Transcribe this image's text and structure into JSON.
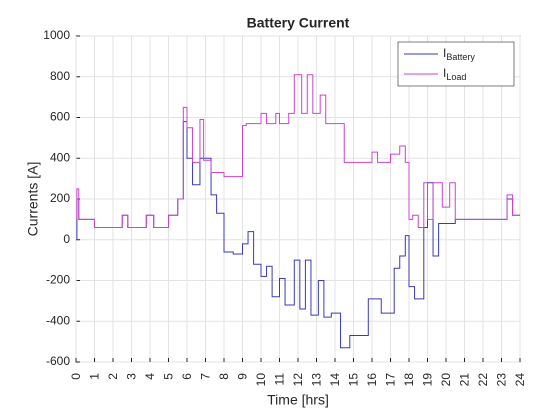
{
  "chart_data": {
    "type": "line",
    "step": true,
    "grid": true,
    "title": "Battery Current",
    "xlabel": "Time [hrs]",
    "ylabel": "Currents [A]",
    "legend": "upper right",
    "xlim": [
      0,
      24
    ],
    "xticks": [
      0,
      1,
      2,
      3,
      4,
      5,
      6,
      7,
      8,
      9,
      10,
      11,
      12,
      13,
      14,
      15,
      16,
      17,
      18,
      19,
      20,
      21,
      22,
      23,
      24
    ],
    "ylim": [
      -600,
      1000
    ],
    "yticks": [
      -600,
      -400,
      -200,
      0,
      200,
      400,
      600,
      800,
      1000
    ],
    "series": [
      {
        "name": "IBattery",
        "color": "#3a3ab8",
        "x": [
          0,
          0.05,
          0.15,
          1,
          2.5,
          2.8,
          3.8,
          4.2,
          5,
          5.5,
          5.8,
          6,
          6.3,
          6.7,
          7.3,
          7.6,
          8,
          8.5,
          9,
          9.3,
          9.6,
          10,
          10.3,
          10.6,
          11,
          11.3,
          11.8,
          12.1,
          12.4,
          12.7,
          13.1,
          13.4,
          13.8,
          14.3,
          14.8,
          15.8,
          16.5,
          17.2,
          17.5,
          17.8,
          18,
          18.3,
          18.8,
          19,
          19.3,
          19.6,
          20,
          20.5,
          22,
          23,
          23.3,
          23.6,
          24
        ],
        "values": [
          0,
          200,
          100,
          60,
          120,
          60,
          120,
          60,
          120,
          200,
          580,
          400,
          270,
          400,
          220,
          130,
          -60,
          -70,
          -20,
          40,
          -120,
          -180,
          -130,
          -280,
          -190,
          -320,
          -100,
          -340,
          -100,
          -370,
          -200,
          -380,
          -360,
          -530,
          -470,
          -290,
          -360,
          -140,
          -80,
          20,
          -230,
          -290,
          60,
          280,
          -80,
          80,
          80,
          100,
          100,
          100,
          200,
          120,
          120
        ]
      },
      {
        "name": "ILoad",
        "color": "#cc44cc",
        "x": [
          0,
          0.05,
          0.15,
          1,
          2.5,
          2.8,
          3.8,
          4.2,
          5,
          5.5,
          5.8,
          6,
          6.3,
          6.7,
          6.9,
          7.3,
          8,
          9,
          9.2,
          10,
          10.3,
          10.8,
          11,
          11.5,
          11.8,
          12.2,
          12.5,
          12.8,
          13.2,
          13.5,
          14.5,
          16,
          16.3,
          17,
          17.5,
          17.8,
          18,
          18.2,
          18.5,
          18.8,
          19,
          19.3,
          19.8,
          20.2,
          20.5,
          22,
          23,
          23.3,
          23.6,
          24
        ],
        "values": [
          100,
          250,
          100,
          60,
          120,
          60,
          120,
          60,
          120,
          200,
          650,
          550,
          380,
          590,
          390,
          330,
          310,
          560,
          570,
          620,
          570,
          620,
          570,
          620,
          810,
          620,
          810,
          620,
          710,
          570,
          380,
          430,
          380,
          420,
          460,
          380,
          100,
          120,
          60,
          280,
          100,
          280,
          160,
          280,
          100,
          100,
          100,
          220,
          120,
          120
        ]
      }
    ]
  }
}
